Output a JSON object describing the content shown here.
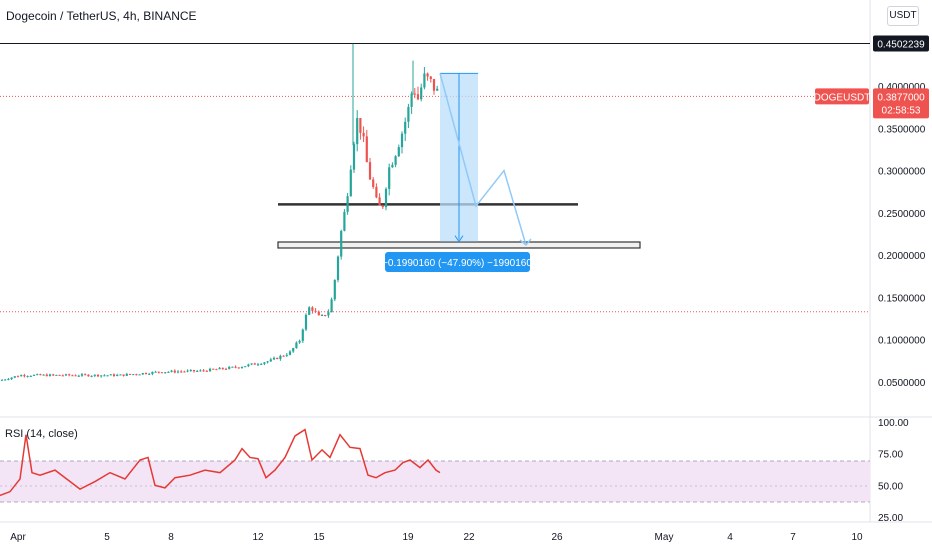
{
  "header": {
    "title": "Dogecoin / TetherUS, 4h, BINANCE",
    "currency_button": "USDT"
  },
  "price_labels": {
    "high_line": "0.4502239",
    "symbol": "DOGEUSDT",
    "last_price": "0.3877000",
    "countdown": "02:58:53"
  },
  "measure_label": "−0.1990160 (−47.90%) −1990160",
  "rsi_label": "RSI (14, close)",
  "colors": {
    "up": "#26a69a",
    "down": "#ef5350",
    "rsi_line": "#e53935",
    "rsi_band": "#f3e5f5",
    "measure_fill": "#bbdefb",
    "measure_line": "#2196f3",
    "label_bg": "#2196f3",
    "price_badge": "#ef5350"
  },
  "chart_data": [
    {
      "type": "candlestick",
      "title": "Dogecoin / TetherUS, 4h, BINANCE",
      "y_axis": {
        "ylim": [
          0.0,
          0.48
        ],
        "ticks": [
          "0.4000000",
          "0.3500000",
          "0.3000000",
          "0.2500000",
          "0.2000000",
          "0.1500000",
          "0.1000000",
          "0.0500000"
        ],
        "tick_values": [
          0.4,
          0.35,
          0.3,
          0.25,
          0.2,
          0.15,
          0.1,
          0.05
        ]
      },
      "x_axis": {
        "tick_labels": [
          "Apr",
          "5",
          "8",
          "12",
          "15",
          "19",
          "22",
          "26",
          "May",
          "4",
          "7",
          "10"
        ]
      },
      "price_path": [
        [
          0,
          0.052
        ],
        [
          20,
          0.058
        ],
        [
          60,
          0.058
        ],
        [
          120,
          0.058
        ],
        [
          160,
          0.062
        ],
        [
          200,
          0.063
        ],
        [
          240,
          0.068
        ],
        [
          270,
          0.075
        ],
        [
          290,
          0.085
        ],
        [
          300,
          0.1
        ],
        [
          305,
          0.125
        ],
        [
          310,
          0.14
        ],
        [
          320,
          0.125
        ],
        [
          330,
          0.135
        ],
        [
          336,
          0.18
        ],
        [
          340,
          0.22
        ],
        [
          346,
          0.26
        ],
        [
          350,
          0.3
        ],
        [
          353,
          0.33
        ],
        [
          357,
          0.36
        ],
        [
          362,
          0.345
        ],
        [
          368,
          0.3
        ],
        [
          373,
          0.28
        ],
        [
          378,
          0.255
        ],
        [
          383,
          0.26
        ],
        [
          388,
          0.3
        ],
        [
          395,
          0.32
        ],
        [
          402,
          0.345
        ],
        [
          408,
          0.37
        ],
        [
          413,
          0.4
        ],
        [
          418,
          0.385
        ],
        [
          424,
          0.41
        ],
        [
          430,
          0.405
        ],
        [
          436,
          0.395
        ],
        [
          440,
          0.3877
        ]
      ],
      "lines": [
        {
          "name": "high",
          "value": 0.4502239
        },
        {
          "name": "support_upper",
          "value": 0.26
        },
        {
          "name": "support_lower",
          "value": 0.212
        }
      ],
      "last_price": 0.3877,
      "dotted_level": 0.133,
      "measure": {
        "from": 0.415,
        "to": 0.216,
        "change": -0.199016,
        "change_percent": -47.9
      },
      "projection_path": [
        [
          440,
          0.415
        ],
        [
          476,
          0.258
        ],
        [
          504,
          0.3
        ],
        [
          526,
          0.212
        ]
      ]
    },
    {
      "type": "line",
      "title": "RSI (14, close)",
      "ylim": [
        20,
        100
      ],
      "y_ticks": [
        "100.00",
        "75.00",
        "50.00",
        "25.00"
      ],
      "tick_values": [
        100,
        75,
        50,
        25
      ],
      "band": [
        30,
        70
      ],
      "values": [
        [
          0,
          42
        ],
        [
          10,
          45
        ],
        [
          20,
          55
        ],
        [
          26,
          90
        ],
        [
          32,
          60
        ],
        [
          40,
          58
        ],
        [
          55,
          62
        ],
        [
          70,
          53
        ],
        [
          80,
          47
        ],
        [
          95,
          53
        ],
        [
          110,
          60
        ],
        [
          125,
          55
        ],
        [
          140,
          70
        ],
        [
          148,
          72
        ],
        [
          155,
          50
        ],
        [
          165,
          48
        ],
        [
          175,
          56
        ],
        [
          190,
          58
        ],
        [
          205,
          62
        ],
        [
          220,
          60
        ],
        [
          235,
          70
        ],
        [
          242,
          79
        ],
        [
          250,
          72
        ],
        [
          258,
          71
        ],
        [
          266,
          56
        ],
        [
          275,
          62
        ],
        [
          285,
          72
        ],
        [
          295,
          89
        ],
        [
          305,
          94
        ],
        [
          312,
          70
        ],
        [
          322,
          78
        ],
        [
          330,
          72
        ],
        [
          340,
          90
        ],
        [
          350,
          80
        ],
        [
          360,
          79
        ],
        [
          368,
          58
        ],
        [
          376,
          56
        ],
        [
          385,
          60
        ],
        [
          395,
          62
        ],
        [
          403,
          68
        ],
        [
          410,
          70
        ],
        [
          420,
          64
        ],
        [
          428,
          70
        ],
        [
          436,
          62
        ],
        [
          440,
          60
        ]
      ]
    }
  ]
}
